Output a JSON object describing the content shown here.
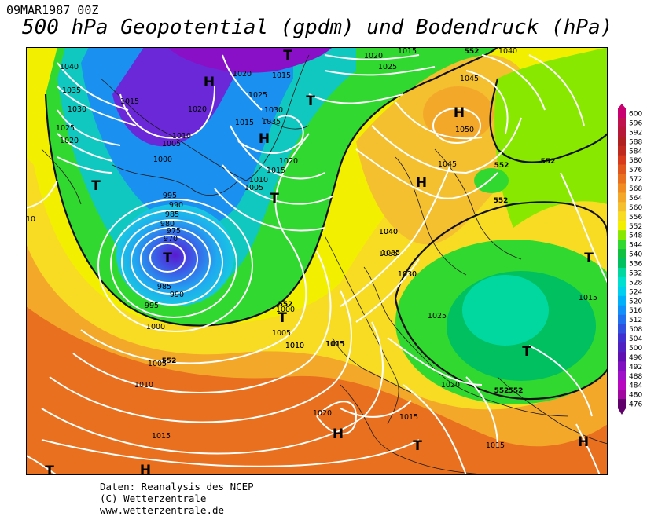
{
  "header": {
    "date_label": "09MAR1987 00Z",
    "title": "500 hPa Geopotential (gpdm) und Bodendruck (hPa)"
  },
  "footer": {
    "line1": "Daten: Reanalysis des NCEP",
    "line2": "(C) Wetterzentrale",
    "line3": "www.wetterzentrale.de"
  },
  "colors": {
    "isobar": "#ffffff",
    "coast": "#1a1a1a",
    "contour_552": "#111111",
    "ocean_yellow": "#f5e600",
    "land_orange": "#f0a020"
  },
  "color_scale": {
    "unit": "gpdm",
    "labels": [
      "600",
      "596",
      "592",
      "588",
      "584",
      "580",
      "576",
      "572",
      "568",
      "564",
      "560",
      "556",
      "552",
      "548",
      "544",
      "540",
      "536",
      "532",
      "528",
      "524",
      "520",
      "516",
      "512",
      "508",
      "504",
      "500",
      "496",
      "492",
      "488",
      "484",
      "480",
      "476"
    ],
    "colors": [
      "#c80070",
      "#c0124c",
      "#b81838",
      "#b02020",
      "#c02a1e",
      "#d83a1c",
      "#e0561c",
      "#e8701e",
      "#f08c22",
      "#f4a82a",
      "#f4c030",
      "#f8dc24",
      "#f2f000",
      "#88e800",
      "#30d830",
      "#10c040",
      "#00c060",
      "#00d8a0",
      "#00e0d0",
      "#00d0f0",
      "#00b0f8",
      "#1090f8",
      "#2070f0",
      "#3050e0",
      "#4030d0",
      "#5020c0",
      "#6010b0",
      "#8010c0",
      "#a010c8",
      "#b808c0",
      "#a008a0",
      "#60006a"
    ]
  },
  "pressure_centers": [
    {
      "symbol": "H",
      "type": "high"
    },
    {
      "symbol": "H",
      "type": "high"
    },
    {
      "symbol": "H",
      "type": "high"
    },
    {
      "symbol": "H",
      "type": "high"
    },
    {
      "symbol": "H",
      "type": "high"
    },
    {
      "symbol": "H",
      "type": "high"
    },
    {
      "symbol": "H",
      "type": "high"
    },
    {
      "symbol": "T",
      "type": "low"
    },
    {
      "symbol": "T",
      "type": "low"
    },
    {
      "symbol": "T",
      "type": "low"
    },
    {
      "symbol": "T",
      "type": "low"
    },
    {
      "symbol": "T",
      "type": "low"
    },
    {
      "symbol": "T",
      "type": "low"
    },
    {
      "symbol": "T",
      "type": "low"
    },
    {
      "symbol": "T",
      "type": "low"
    },
    {
      "symbol": "T",
      "type": "low"
    },
    {
      "symbol": "T",
      "type": "low"
    }
  ],
  "isobar_labels": [
    "1040",
    "1035",
    "1030",
    "1025",
    "1020",
    "1015",
    "1010",
    "1005",
    "1000",
    "995",
    "990",
    "985",
    "980",
    "975",
    "970",
    "985",
    "990",
    "995",
    "1000",
    "1005",
    "1010",
    "1015",
    "1015",
    "1020",
    "1020",
    "1025",
    "1030",
    "1035",
    "1015",
    "1010",
    "1005",
    "1000",
    "1005",
    "1010",
    "1015",
    "1020",
    "1015",
    "1015",
    "1020",
    "1025",
    "1030",
    "1035",
    "1040",
    "1045",
    "1050",
    "1045",
    "1040",
    "1035",
    "1030",
    "1025",
    "1020",
    "1015",
    "1010",
    "1020",
    "1015",
    "1015",
    "1040",
    "1015",
    "10"
  ],
  "geopotential_labels": [
    "552",
    "552",
    "552",
    "552",
    "552",
    "552",
    "552",
    "552"
  ]
}
